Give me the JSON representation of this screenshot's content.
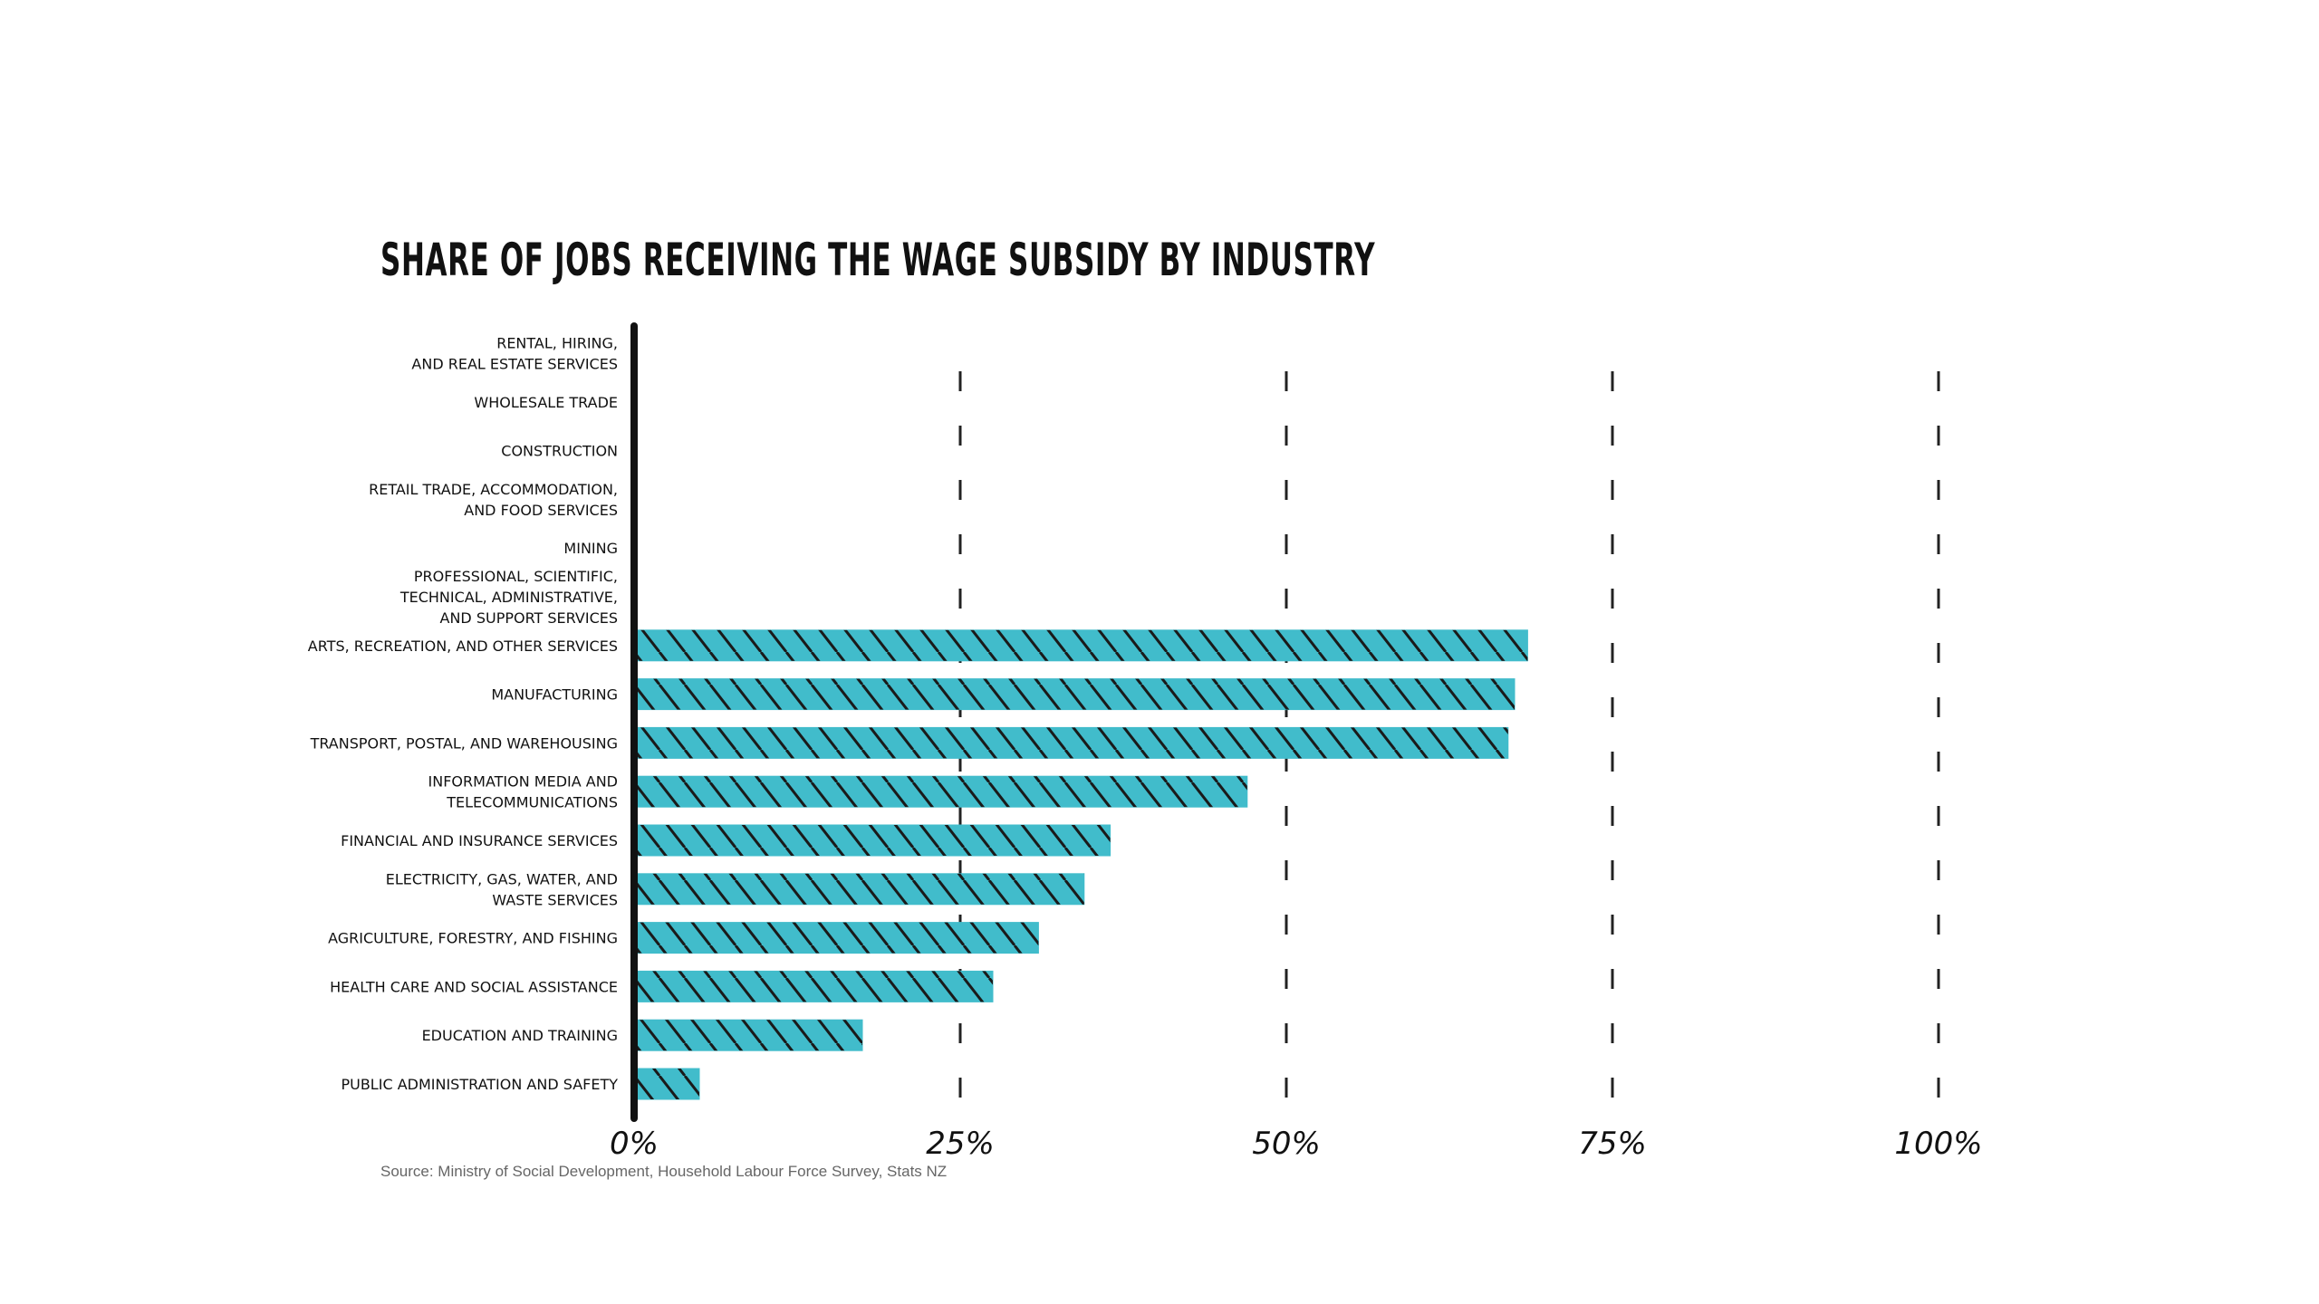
{
  "chart_data": {
    "type": "bar",
    "orientation": "horizontal",
    "title": "SHARE OF JOBS RECEIVING THE WAGE SUBSIDY BY INDUSTRY",
    "xlim": [
      0,
      100
    ],
    "ticks": [
      0,
      25,
      50,
      75,
      100
    ],
    "tick_labels": [
      "0%",
      "25%",
      "50%",
      "75%",
      "100%"
    ],
    "bar_color": "#41BCCB",
    "hatch_color": "#1a1a1a",
    "categories": [
      [
        "RENTAL, HIRING,",
        "AND REAL ESTATE SERVICES"
      ],
      [
        "WHOLESALE TRADE"
      ],
      [
        "CONSTRUCTION"
      ],
      [
        "RETAIL TRADE, ACCOMMODATION,",
        "AND FOOD SERVICES"
      ],
      [
        "MINING"
      ],
      [
        "PROFESSIONAL, SCIENTIFIC,",
        "TECHNICAL, ADMINISTRATIVE,",
        "AND SUPPORT SERVICES"
      ],
      [
        "ARTS, RECREATION, AND OTHER SERVICES"
      ],
      [
        "MANUFACTURING"
      ],
      [
        "TRANSPORT, POSTAL, AND WAREHOUSING"
      ],
      [
        "INFORMATION MEDIA AND",
        "TELECOMMUNICATIONS"
      ],
      [
        "FINANCIAL AND INSURANCE SERVICES"
      ],
      [
        "ELECTRICITY, GAS, WATER, AND",
        "WASTE SERVICES"
      ],
      [
        "AGRICULTURE, FORESTRY, AND FISHING"
      ],
      [
        "HEALTH CARE AND SOCIAL ASSISTANCE"
      ],
      [
        "EDUCATION AND TRAINING"
      ],
      [
        "PUBLIC ADMINISTRATION AND SAFETY"
      ]
    ],
    "values": [
      null,
      null,
      null,
      null,
      null,
      null,
      68.5,
      67.5,
      67,
      47,
      36.5,
      34.5,
      31,
      27.5,
      17.5,
      5
    ]
  },
  "source": "Source: Ministry of Social Development, Household Labour Force Survey, Stats NZ"
}
